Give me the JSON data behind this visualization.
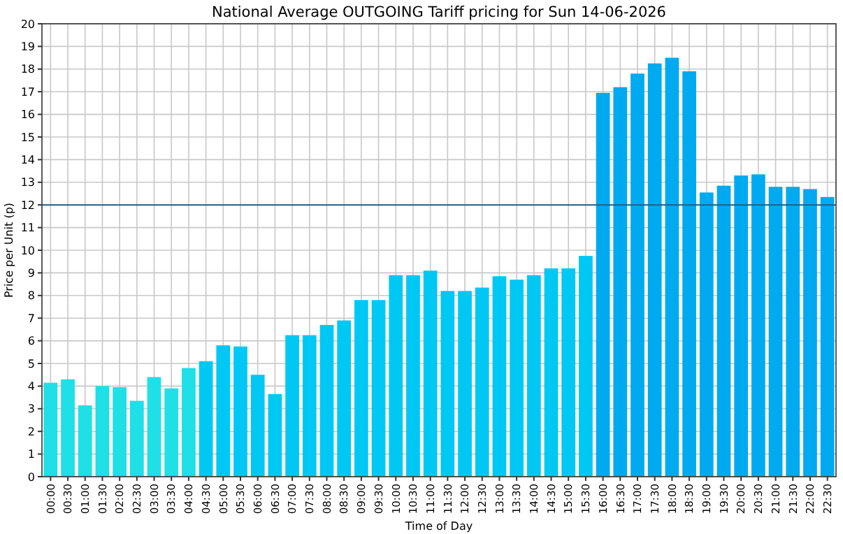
{
  "chart_data": {
    "type": "bar",
    "title": "National Average OUTGOING Tariff pricing for Sun 14-06-2026",
    "xlabel": "Time of Day",
    "ylabel": "Price per Unit (p)",
    "categories": [
      "00:00",
      "00:30",
      "01:00",
      "01:30",
      "02:00",
      "02:30",
      "03:00",
      "03:30",
      "04:00",
      "04:30",
      "05:00",
      "05:30",
      "06:00",
      "06:30",
      "07:00",
      "07:30",
      "08:00",
      "08:30",
      "09:00",
      "09:30",
      "10:00",
      "10:30",
      "11:00",
      "11:30",
      "12:00",
      "12:30",
      "13:00",
      "13:30",
      "14:00",
      "14:30",
      "15:00",
      "15:30",
      "16:00",
      "16:30",
      "17:00",
      "17:30",
      "18:00",
      "18:30",
      "19:00",
      "19:30",
      "20:00",
      "20:30",
      "21:00",
      "21:30",
      "22:00",
      "22:30"
    ],
    "values": [
      4.15,
      4.3,
      3.15,
      4.0,
      3.95,
      3.35,
      4.4,
      3.9,
      4.8,
      5.1,
      5.8,
      5.75,
      4.5,
      3.65,
      6.25,
      6.25,
      6.7,
      6.9,
      7.8,
      7.8,
      8.9,
      8.9,
      9.1,
      8.2,
      8.2,
      8.35,
      8.85,
      8.7,
      8.9,
      9.2,
      9.2,
      9.75,
      16.95,
      17.2,
      17.8,
      18.25,
      18.5,
      17.9,
      12.55,
      12.85,
      13.3,
      13.35,
      12.8,
      12.8,
      12.7,
      12.35
    ],
    "colors": [
      "#1ee0e6",
      "#1ee0e6",
      "#1ee0e6",
      "#1ee0e6",
      "#1ee0e6",
      "#1ee0e6",
      "#1ee0e6",
      "#1ee0e6",
      "#1ee0e6",
      "#00c8f5",
      "#00c8f5",
      "#00c8f5",
      "#00c8f5",
      "#00c8f5",
      "#00c8f5",
      "#00c8f5",
      "#00c8f5",
      "#00c8f5",
      "#00c8f5",
      "#00c8f5",
      "#00c8f5",
      "#00c8f5",
      "#00c8f5",
      "#00c8f5",
      "#00c8f5",
      "#00c8f5",
      "#00c8f5",
      "#00c8f5",
      "#00c8f5",
      "#00c8f5",
      "#00c8f5",
      "#00c8f5",
      "#00aaf0",
      "#00aaf0",
      "#00aaf0",
      "#00aaf0",
      "#00aaf0",
      "#00aaf0",
      "#00aaf0",
      "#00aaf0",
      "#00aaf0",
      "#00aaf0",
      "#00aaf0",
      "#00aaf0",
      "#00aaf0",
      "#00aaf0"
    ],
    "ylim": [
      0,
      20
    ],
    "yticks": [
      0,
      1,
      2,
      3,
      4,
      5,
      6,
      7,
      8,
      9,
      10,
      11,
      12,
      13,
      14,
      15,
      16,
      17,
      18,
      19,
      20
    ],
    "ref_lines": [
      {
        "axis": "y",
        "value": 12,
        "color": "#1f5f8b"
      }
    ],
    "grid": true
  }
}
